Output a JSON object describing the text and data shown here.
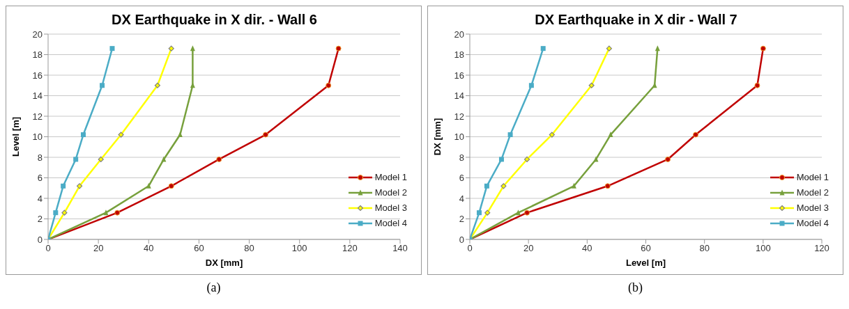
{
  "chart_data": [
    {
      "type": "line",
      "title": "DX Earthquake in X dir. - Wall 6",
      "xlabel": "DX  [mm]",
      "ylabel": "Level [m]",
      "xlim": [
        0,
        140
      ],
      "xticks": [
        0,
        20,
        40,
        60,
        80,
        100,
        120,
        140
      ],
      "ylim": [
        0,
        20
      ],
      "yticks": [
        0,
        2,
        4,
        6,
        8,
        10,
        12,
        14,
        16,
        18,
        20
      ],
      "grid": "y",
      "legend": "bottom right",
      "annotations": [
        "(a)"
      ],
      "series": [
        {
          "name": "Model 1",
          "color": "#c00000",
          "marker": "circle",
          "x": [
            0,
            27.5,
            49,
            68,
            86.5,
            111.5,
            115.5
          ],
          "values": [
            0,
            2.6,
            5.2,
            7.8,
            10.2,
            15,
            18.6
          ]
        },
        {
          "name": "Model 2",
          "color": "#77a03c",
          "marker": "triangle",
          "x": [
            0,
            23,
            40,
            46,
            52.5,
            57.5,
            57.5
          ],
          "values": [
            0,
            2.6,
            5.2,
            7.8,
            10.2,
            15,
            18.6
          ]
        },
        {
          "name": "Model 3",
          "color": "#ffff00",
          "marker": "diamond",
          "x": [
            0,
            6.5,
            12.5,
            21,
            29,
            43.5,
            49
          ],
          "values": [
            0,
            2.6,
            5.2,
            7.8,
            10.2,
            15,
            18.6
          ]
        },
        {
          "name": "Model 4",
          "color": "#4bacc6",
          "marker": "square",
          "x": [
            0,
            3,
            6,
            11,
            14,
            21.5,
            25.5
          ],
          "values": [
            0,
            2.6,
            5.2,
            7.8,
            10.2,
            15,
            18.6
          ]
        }
      ]
    },
    {
      "type": "line",
      "title": "DX Earthquake in X dir - Wall 7",
      "xlabel": "Level [m]",
      "ylabel": "DX  [mm]",
      "xlim": [
        0,
        120
      ],
      "xticks": [
        0,
        20,
        40,
        60,
        80,
        100,
        120
      ],
      "ylim": [
        0,
        20
      ],
      "yticks": [
        0,
        2,
        4,
        6,
        8,
        10,
        12,
        14,
        16,
        18,
        20
      ],
      "grid": "y",
      "legend": "bottom right",
      "annotations": [
        "(b)"
      ],
      "series": [
        {
          "name": "Model 1",
          "color": "#c00000",
          "marker": "circle",
          "x": [
            0,
            19.5,
            47,
            67.5,
            77,
            98,
            100
          ],
          "values": [
            0,
            2.6,
            5.2,
            7.8,
            10.2,
            15,
            18.6
          ]
        },
        {
          "name": "Model 2",
          "color": "#77a03c",
          "marker": "triangle",
          "x": [
            0,
            16.5,
            35.5,
            43,
            48,
            63,
            64
          ],
          "values": [
            0,
            2.6,
            5.2,
            7.8,
            10.2,
            15,
            18.6
          ]
        },
        {
          "name": "Model 3",
          "color": "#ffff00",
          "marker": "diamond",
          "x": [
            0,
            6,
            11.5,
            19.5,
            28,
            41.5,
            47.5
          ],
          "values": [
            0,
            2.6,
            5.2,
            7.8,
            10.2,
            15,
            18.6
          ]
        },
        {
          "name": "Model 4",
          "color": "#4bacc6",
          "marker": "square",
          "x": [
            0,
            3.2,
            5.8,
            10.8,
            13.8,
            21,
            25
          ],
          "values": [
            0,
            2.6,
            5.2,
            7.8,
            10.2,
            15,
            18.6
          ]
        }
      ]
    }
  ]
}
